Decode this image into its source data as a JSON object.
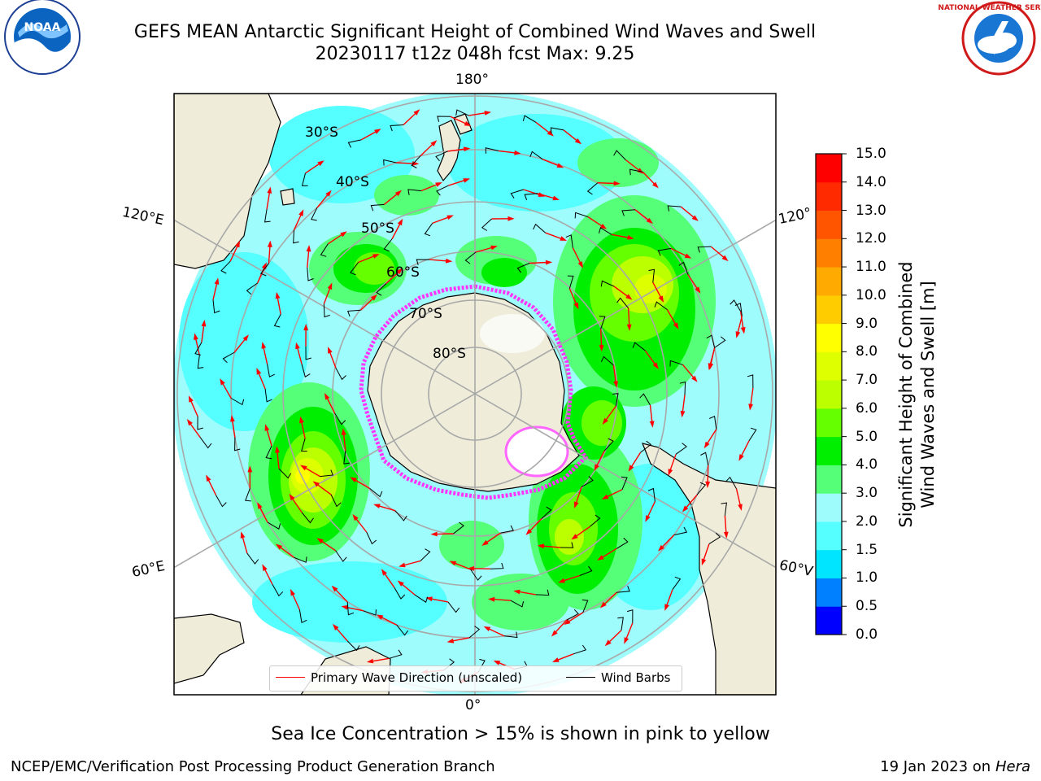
{
  "title": {
    "line1": "GEFS MEAN Antarctic Significant Height of Combined Wind Waves and Swell",
    "line2": "20230117 t12z 048h fcst   Max: 9.25"
  },
  "map": {
    "projection": "south-polar-stereographic",
    "longitude_labels": {
      "top": "180°",
      "bottom": "0°",
      "upper_left": "120°E",
      "lower_left": "60°E",
      "upper_right": "120°",
      "lower_right": "60°V"
    },
    "latitude_labels": [
      "30°S",
      "40°S",
      "50°S",
      "60°S",
      "70°S",
      "80°S"
    ],
    "land_color": "#efedda",
    "ocean_base_color": "#9ffcfc",
    "ice_colors": [
      "#ff33ff",
      "#ff99ff",
      "#ffff66",
      "#ffffff"
    ]
  },
  "colorbar": {
    "label_line1": "Significant Height of Combined",
    "label_line2": "Wind Waves and Swell [m]",
    "ticks": [
      "0.0",
      "0.5",
      "1.0",
      "1.5",
      "2.0",
      "3.0",
      "4.0",
      "5.0",
      "6.0",
      "7.0",
      "8.0",
      "9.0",
      "10.0",
      "11.0",
      "12.0",
      "13.0",
      "14.0",
      "15.0"
    ],
    "colors": [
      "#0000ff",
      "#007fff",
      "#00e5ff",
      "#55ffff",
      "#9ffcfc",
      "#55ff77",
      "#00ee00",
      "#66ff00",
      "#bbff00",
      "#ddff00",
      "#ffff00",
      "#ffcc00",
      "#ffaa00",
      "#ff8000",
      "#ff5500",
      "#ff2a00",
      "#ff0000"
    ]
  },
  "legend": {
    "wave_label": "Primary Wave Direction (unscaled)",
    "wave_color": "#ff0000",
    "wind_label": "Wind Barbs",
    "wind_color": "#000000"
  },
  "caption": "Sea Ice Concentration > 15% is shown in pink to yellow",
  "footer": {
    "left": "NCEP/EMC/Verification Post Processing Product Generation Branch",
    "right_date": "19 Jan 2023 on",
    "right_machine": "Hera"
  },
  "logos": {
    "left": "NOAA",
    "right": "NATIONAL WEATHER SERVICE"
  }
}
